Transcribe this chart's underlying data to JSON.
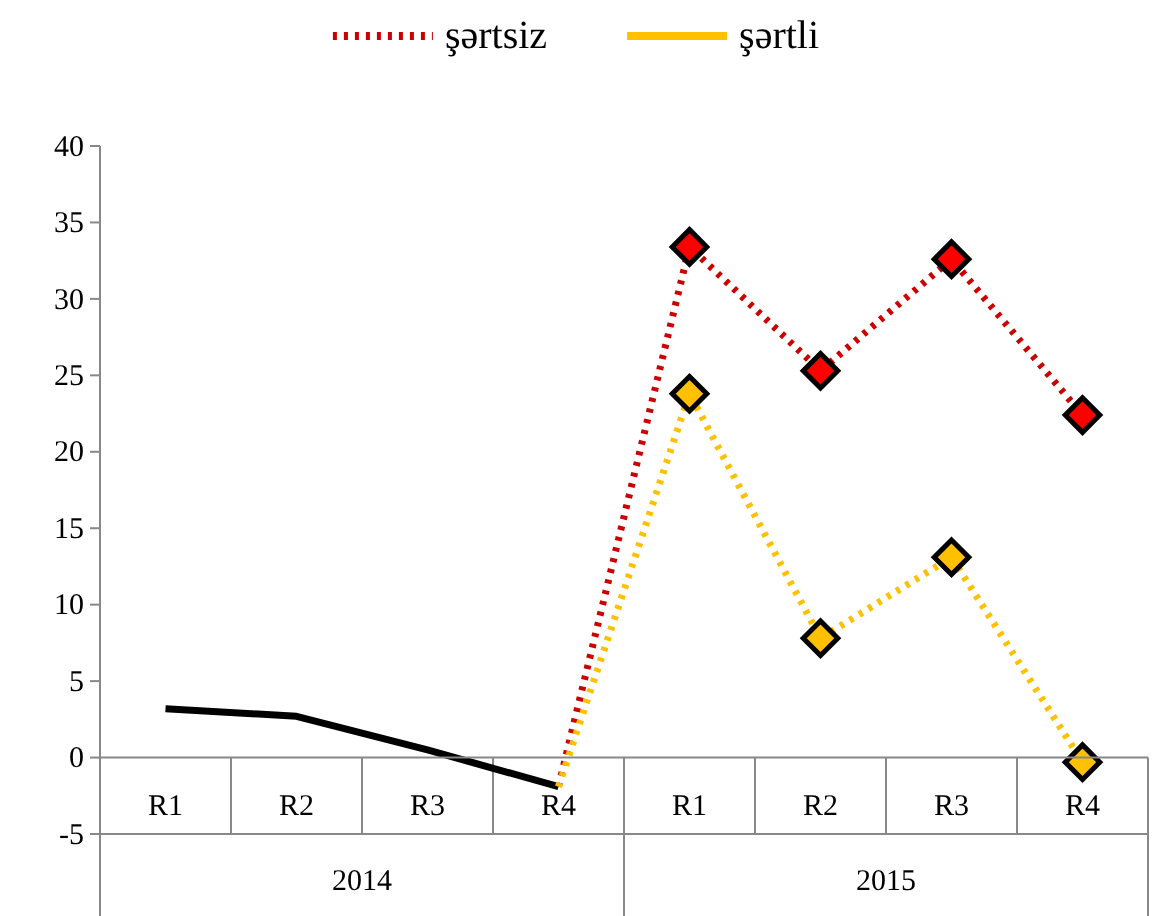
{
  "chart_data": {
    "type": "line",
    "categories": [
      "R1",
      "R2",
      "R3",
      "R4",
      "R1",
      "R2",
      "R3",
      "R4"
    ],
    "annotations": [
      "2014",
      "2015"
    ],
    "series": [
      {
        "color": "#000000",
        "values": [
          3.2,
          2.7,
          0.5,
          -1.9,
          null,
          null,
          null,
          null
        ],
        "marker": "none",
        "line_style": "solid"
      },
      {
        "name": "şərtsiz",
        "color": "#cc0000",
        "values": [
          null,
          null,
          null,
          -1.9,
          33.4,
          25.3,
          32.6,
          22.4
        ],
        "marker": "diamond",
        "line_style": "dotted"
      },
      {
        "name": "şərtli",
        "color": "#ffc000",
        "values": [
          null,
          null,
          null,
          -1.9,
          23.8,
          7.8,
          13.1,
          -0.3
        ],
        "marker": "diamond",
        "line_style": "dotted"
      }
    ],
    "ylim": [
      -5,
      40
    ],
    "yticks": [
      -5,
      0,
      5,
      10,
      15,
      20,
      25,
      30,
      35,
      40
    ],
    "legend": "top"
  }
}
